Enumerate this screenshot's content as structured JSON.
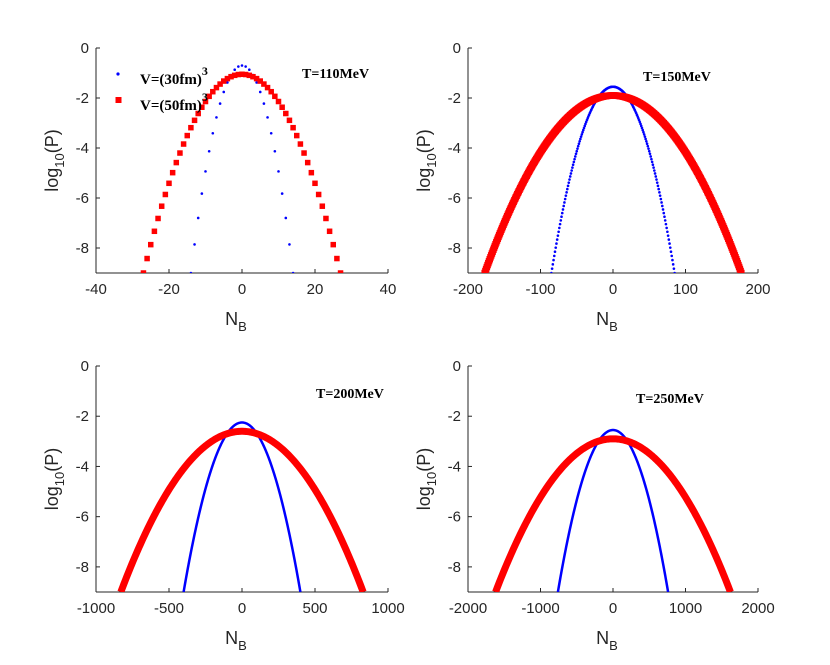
{
  "legend": {
    "entries": [
      {
        "label": "V=(30fm)",
        "exponent": "3",
        "color": "#0000ff",
        "marker": "point"
      },
      {
        "label": "V=(50fm)",
        "exponent": "3",
        "color": "#ff0000",
        "marker": "square"
      }
    ]
  },
  "chart_data": [
    {
      "type": "scatter",
      "annotation": "T=110MeV",
      "xlabel": "N_B",
      "ylabel": "log_10(P)",
      "xlim": [
        -40,
        40
      ],
      "ylim": [
        -9,
        0
      ],
      "xticks": [
        -40,
        -20,
        0,
        20,
        40
      ],
      "yticks": [
        0,
        -2,
        -4,
        -6,
        -8
      ],
      "grid": false,
      "series": [
        {
          "name": "V=(30fm)^3",
          "color": "#0000ff",
          "marker": "point",
          "peak": -0.7,
          "x_at_min": 14,
          "step": 1
        },
        {
          "name": "V=(50fm)^3",
          "color": "#ff0000",
          "marker": "square",
          "peak": -1.05,
          "x_at_min": 27,
          "step": 1
        }
      ]
    },
    {
      "type": "line",
      "annotation": "T=150MeV",
      "xlabel": "N_B",
      "ylabel": "log_10(P)",
      "xlim": [
        -200,
        200
      ],
      "ylim": [
        -9,
        0
      ],
      "xticks": [
        -200,
        -100,
        0,
        100,
        200
      ],
      "yticks": [
        0,
        -2,
        -4,
        -6,
        -8
      ],
      "grid": false,
      "series": [
        {
          "name": "V=(30fm)^3",
          "color": "#0000ff",
          "marker": "point",
          "peak": -1.55,
          "x_at_min": 85,
          "step": 1
        },
        {
          "name": "V=(50fm)^3",
          "color": "#ff0000",
          "marker": "square",
          "peak": -1.9,
          "x_at_min": 177,
          "step": 1
        }
      ]
    },
    {
      "type": "line",
      "annotation": "T=200MeV",
      "xlabel": "N_B",
      "ylabel": "log_10(P)",
      "xlim": [
        -1000,
        1000
      ],
      "ylim": [
        -9,
        0
      ],
      "xticks": [
        -1000,
        -500,
        0,
        500,
        1000
      ],
      "yticks": [
        0,
        -2,
        -4,
        -6,
        -8
      ],
      "grid": false,
      "series": [
        {
          "name": "V=(30fm)^3",
          "color": "#0000ff",
          "marker": "line",
          "peak": -2.25,
          "x_at_min": 400
        },
        {
          "name": "V=(50fm)^3",
          "color": "#ff0000",
          "marker": "line",
          "peak": -2.6,
          "x_at_min": 830
        }
      ]
    },
    {
      "type": "line",
      "annotation": "T=250MeV",
      "xlabel": "N_B",
      "ylabel": "log_10(P)",
      "xlim": [
        -2000,
        2000
      ],
      "ylim": [
        -9,
        0
      ],
      "xticks": [
        -2000,
        -1000,
        0,
        1000,
        2000
      ],
      "yticks": [
        0,
        -2,
        -4,
        -6,
        -8
      ],
      "grid": false,
      "series": [
        {
          "name": "V=(30fm)^3",
          "color": "#0000ff",
          "marker": "line",
          "peak": -2.55,
          "x_at_min": 760
        },
        {
          "name": "V=(50fm)^3",
          "color": "#ff0000",
          "marker": "line",
          "peak": -2.9,
          "x_at_min": 1620
        }
      ]
    }
  ]
}
